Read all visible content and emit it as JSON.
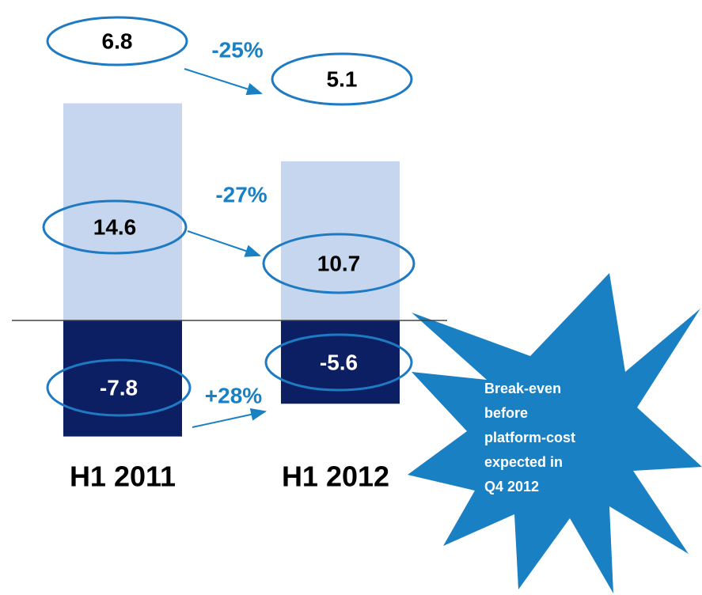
{
  "chart_data": {
    "type": "bar",
    "categories": [
      "H1 2011",
      "H1 2012"
    ],
    "series": [
      {
        "color": "#c6d6ee",
        "values": [
          14.6,
          10.7
        ]
      },
      {
        "color": "#0c1f63",
        "values": [
          -7.8,
          -5.6
        ]
      }
    ],
    "totals": [
      6.8,
      5.1
    ],
    "changes": [
      "-25%",
      "-27%",
      "+28%"
    ],
    "callout": [
      "Break-even",
      "before",
      "platform-cost",
      "expected in",
      "Q4 2012"
    ]
  }
}
